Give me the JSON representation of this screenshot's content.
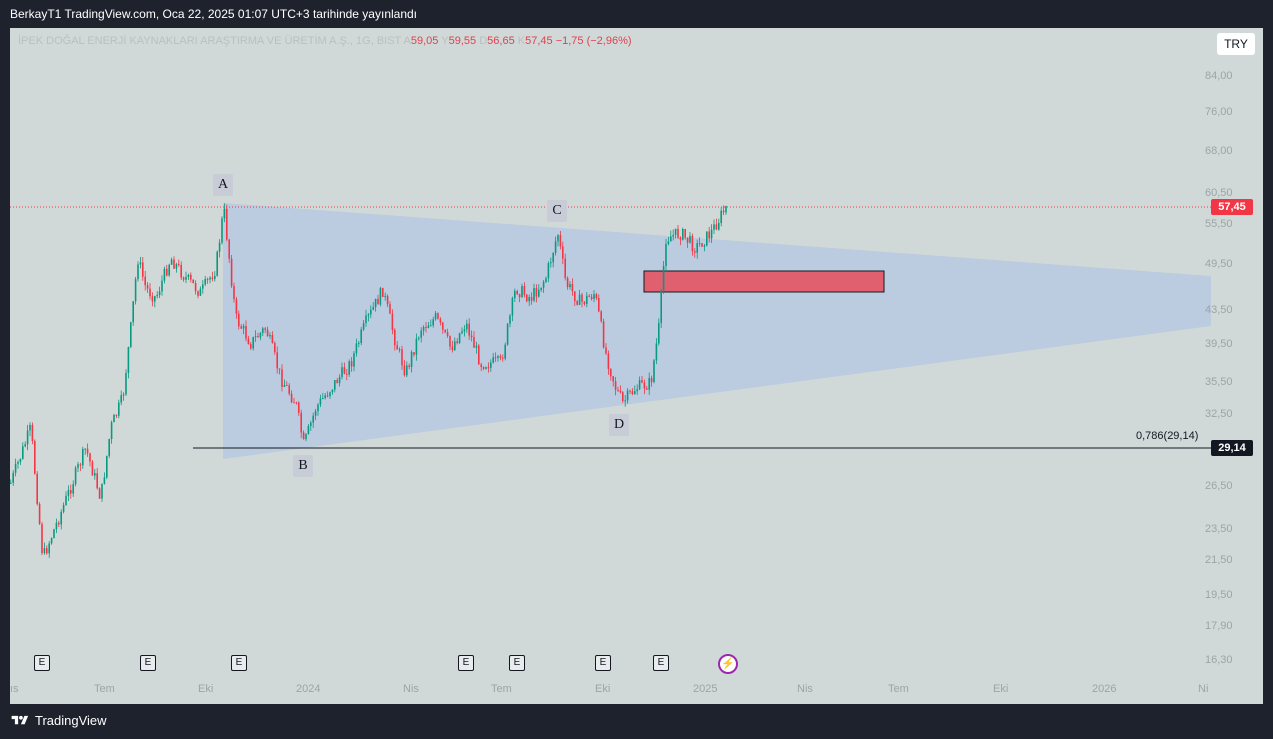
{
  "header": {
    "publish_text": "BerkayT1 TradingView.com, Oca 22, 2025 01:07 UTC+3 tarihinde yayınlandı"
  },
  "legend": {
    "symbol": "İPEK DOĞAL ENERJİ KAYNAKLARI ARAŞTIRMA VE ÜRETİM A.Ş., 1G, BIST",
    "o_label": "A",
    "o_value": "59,05",
    "h_label": "Y",
    "h_value": "59,55",
    "l_label": "D",
    "l_value": "56,65",
    "c_label": "K",
    "c_value": "57,45",
    "change": "−1,75 (−2,96%)"
  },
  "currency": "TRY",
  "price_tags": {
    "last": "57,45",
    "fib": "29,14"
  },
  "fib_label": "0,786(29,14)",
  "wave_labels": [
    "A",
    "B",
    "C",
    "D"
  ],
  "y_axis": [
    "84,00",
    "76,00",
    "68,00",
    "60,50",
    "55,50",
    "49,50",
    "43,50",
    "39,50",
    "35,50",
    "32,50",
    "26,50",
    "23,50",
    "21,50",
    "19,50",
    "17,90",
    "16,30"
  ],
  "x_axis": [
    "ıs",
    "Tem",
    "Eki",
    "2024",
    "Nis",
    "Tem",
    "Eki",
    "2025",
    "Nis",
    "Tem",
    "Eki",
    "2026",
    "Ni"
  ],
  "event_marker": "E",
  "footer": {
    "brand": "TradingView"
  },
  "colors": {
    "up": "#089981",
    "down": "#f23645",
    "triangle": "#b7c9e2",
    "zone": "#e06070",
    "background": "#d1d9d8"
  },
  "chart_data": {
    "type": "candlestick",
    "interval": "1G",
    "last_price": 57.45,
    "fib_level": 29.14,
    "pivots": [
      {
        "label": "A",
        "date": "2023-10",
        "price": 57.0
      },
      {
        "label": "B",
        "date": "2023-12",
        "price": 30.0
      },
      {
        "label": "C",
        "date": "2024-08",
        "price": 54.0
      },
      {
        "label": "D",
        "date": "2024-10",
        "price": 33.5
      }
    ],
    "zone": {
      "price_low": 45.5,
      "price_high": 48.0
    }
  }
}
